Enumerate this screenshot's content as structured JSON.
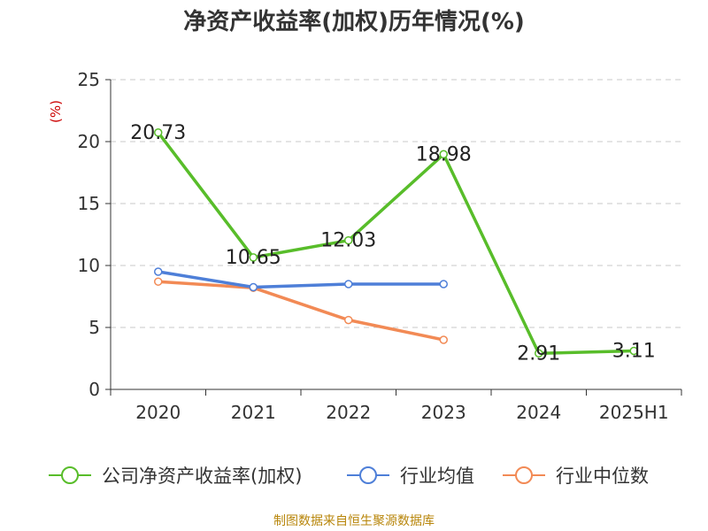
{
  "title": "净资产收益率(加权)历年情况(%)",
  "source": "制图数据来自恒生聚源数据库",
  "colors": {
    "company": "#58bd2a",
    "industry_avg": "#4e7fd8",
    "industry_median": "#f28a55"
  },
  "chart_data": {
    "type": "line",
    "title": "净资产收益率(加权)历年情况(%)",
    "xlabel": "",
    "ylabel": "(%)",
    "ylim": [
      0,
      25
    ],
    "yticks": [
      0,
      5,
      10,
      15,
      20,
      25
    ],
    "grid": true,
    "legend_position": "bottom",
    "categories": [
      "2020",
      "2021",
      "2022",
      "2023",
      "2024",
      "2025H1"
    ],
    "series": [
      {
        "name": "公司净资产收益率(加权)",
        "color": "#58bd2a",
        "values": [
          20.73,
          10.65,
          12.03,
          18.98,
          2.91,
          3.11
        ],
        "labels": [
          "20.73",
          "10.65",
          "12.03",
          "18.98",
          "2.91",
          "3.11"
        ]
      },
      {
        "name": "行业均值",
        "color": "#4e7fd8",
        "values": [
          9.5,
          8.25,
          8.5,
          8.5,
          null,
          null
        ]
      },
      {
        "name": "行业中位数",
        "color": "#f28a55",
        "values": [
          8.7,
          8.2,
          5.6,
          4.0,
          null,
          null
        ]
      }
    ]
  }
}
